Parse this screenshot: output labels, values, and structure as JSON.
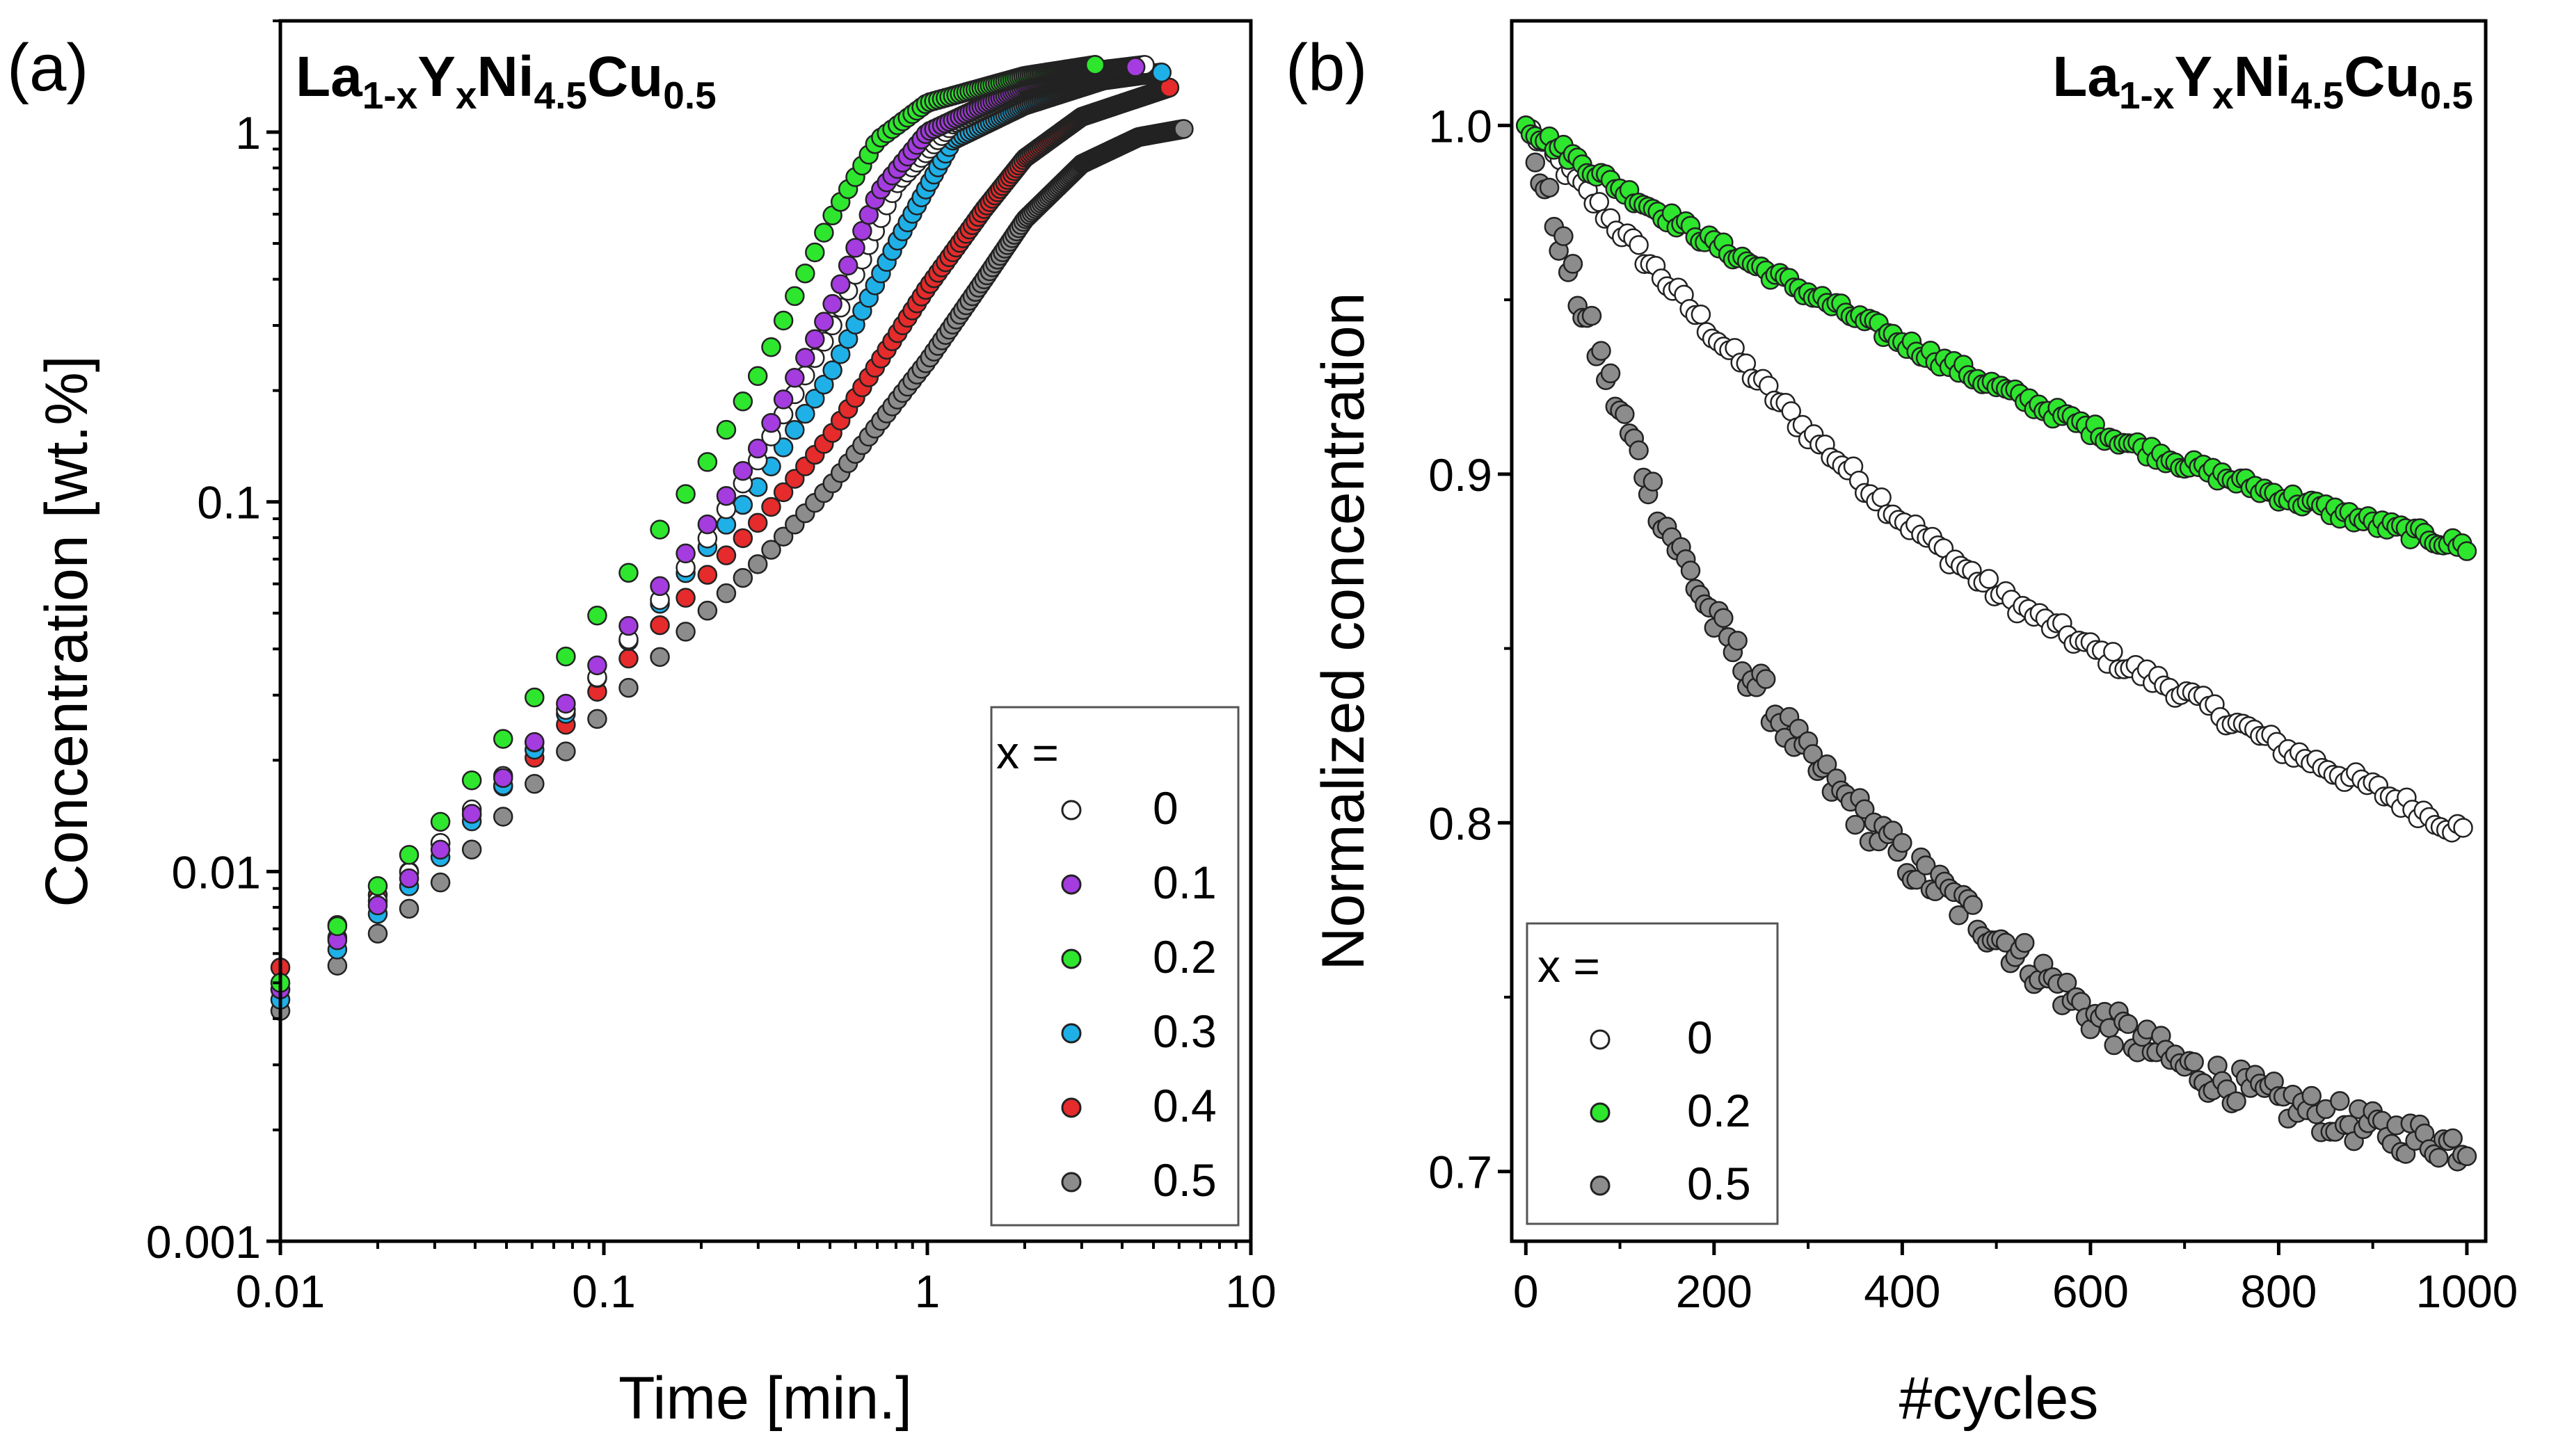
{
  "chart_data": [
    {
      "type": "scatter",
      "panel_label": "(a)",
      "title_parts": {
        "a": "La",
        "b": "1-x",
        "c": "Y",
        "d": "x",
        "e": "Ni",
        "f": "4.5",
        "g": "Cu",
        "h": "0.5"
      },
      "xlabel": "Time [min.]",
      "ylabel": "Concentration [wt.%]",
      "xscale": "log",
      "yscale": "log",
      "xlim": [
        0.01,
        10
      ],
      "ylim": [
        0.001,
        2
      ],
      "xticks": [
        {
          "v": 0.01,
          "label": "0.01"
        },
        {
          "v": 0.1,
          "label": "0.1"
        },
        {
          "v": 1,
          "label": "1"
        },
        {
          "v": 10,
          "label": "10"
        }
      ],
      "yticks": [
        {
          "v": 0.001,
          "label": "0.001"
        },
        {
          "v": 0.01,
          "label": "0.01"
        },
        {
          "v": 0.1,
          "label": "0.1"
        },
        {
          "v": 1,
          "label": "1"
        }
      ],
      "legend": {
        "title": "x =",
        "position": "bottom-right"
      },
      "series": [
        {
          "name": "0",
          "color": "#ffffff",
          "keypoints": [
            [
              0.01,
              0.0048
            ],
            [
              0.03,
              0.0115
            ],
            [
              0.06,
              0.022
            ],
            [
              0.1,
              0.035
            ],
            [
              0.2,
              0.075
            ],
            [
              0.3,
              0.13
            ],
            [
              0.5,
              0.29
            ],
            [
              0.8,
              0.72
            ],
            [
              1.2,
              1.05
            ],
            [
              2.0,
              1.3
            ],
            [
              3.0,
              1.45
            ],
            [
              4.7,
              1.52
            ]
          ]
        },
        {
          "name": "0.1",
          "color": "#a43ce0",
          "keypoints": [
            [
              0.01,
              0.0048
            ],
            [
              0.03,
              0.011
            ],
            [
              0.06,
              0.022
            ],
            [
              0.1,
              0.038
            ],
            [
              0.2,
              0.082
            ],
            [
              0.3,
              0.14
            ],
            [
              0.5,
              0.33
            ],
            [
              0.7,
              0.68
            ],
            [
              1.0,
              1.0
            ],
            [
              2.0,
              1.33
            ],
            [
              3.0,
              1.45
            ],
            [
              4.4,
              1.5
            ]
          ]
        },
        {
          "name": "0.2",
          "color": "#2ee62e",
          "keypoints": [
            [
              0.01,
              0.005
            ],
            [
              0.03,
              0.013
            ],
            [
              0.06,
              0.029
            ],
            [
              0.1,
              0.052
            ],
            [
              0.2,
              0.12
            ],
            [
              0.3,
              0.22
            ],
            [
              0.5,
              0.58
            ],
            [
              0.7,
              0.95
            ],
            [
              1.0,
              1.2
            ],
            [
              2.0,
              1.42
            ],
            [
              3.3,
              1.52
            ]
          ]
        },
        {
          "name": "0.3",
          "color": "#1fb0e8",
          "keypoints": [
            [
              0.01,
              0.0045
            ],
            [
              0.03,
              0.0105
            ],
            [
              0.06,
              0.021
            ],
            [
              0.1,
              0.035
            ],
            [
              0.2,
              0.072
            ],
            [
              0.3,
              0.11
            ],
            [
              0.5,
              0.22
            ],
            [
              0.8,
              0.5
            ],
            [
              1.2,
              0.95
            ],
            [
              2.0,
              1.18
            ],
            [
              3.5,
              1.38
            ],
            [
              5.3,
              1.45
            ]
          ]
        },
        {
          "name": "0.4",
          "color": "#e52b2b",
          "keypoints": [
            [
              0.01,
              0.0055
            ],
            [
              0.025,
              0.01
            ],
            [
              0.06,
              0.02
            ],
            [
              0.1,
              0.032
            ],
            [
              0.2,
              0.061
            ],
            [
              0.3,
              0.088
            ],
            [
              0.5,
              0.15
            ],
            [
              1.0,
              0.38
            ],
            [
              1.5,
              0.62
            ],
            [
              2.0,
              0.85
            ],
            [
              3.0,
              1.1
            ],
            [
              5.6,
              1.32
            ]
          ]
        },
        {
          "name": "0.5",
          "color": "#8c8c8c",
          "keypoints": [
            [
              0.01,
              0.0042
            ],
            [
              0.03,
              0.009
            ],
            [
              0.06,
              0.017
            ],
            [
              0.1,
              0.027
            ],
            [
              0.2,
              0.049
            ],
            [
              0.3,
              0.068
            ],
            [
              0.5,
              0.11
            ],
            [
              1.0,
              0.24
            ],
            [
              1.5,
              0.4
            ],
            [
              2.0,
              0.58
            ],
            [
              3.0,
              0.82
            ],
            [
              4.5,
              0.97
            ],
            [
              6.2,
              1.02
            ]
          ]
        }
      ]
    },
    {
      "type": "scatter",
      "panel_label": "(b)",
      "title_parts": {
        "a": "La",
        "b": "1-x",
        "c": "Y",
        "d": "x",
        "e": "Ni",
        "f": "4.5",
        "g": "Cu",
        "h": "0.5"
      },
      "xlabel": "#cycles",
      "ylabel": "Normalized concentration",
      "xlim": [
        -15,
        1020
      ],
      "ylim": [
        0.68,
        1.03
      ],
      "xticks": [
        {
          "v": 0,
          "label": "0"
        },
        {
          "v": 200,
          "label": "200"
        },
        {
          "v": 400,
          "label": "400"
        },
        {
          "v": 600,
          "label": "600"
        },
        {
          "v": 800,
          "label": "800"
        },
        {
          "v": 1000,
          "label": "1000"
        }
      ],
      "yticks": [
        {
          "v": 0.7,
          "label": "0.7"
        },
        {
          "v": 0.8,
          "label": "0.8"
        },
        {
          "v": 0.9,
          "label": "0.9"
        },
        {
          "v": 1.0,
          "label": "1.0"
        }
      ],
      "legend": {
        "title": "x =",
        "position": "bottom-left"
      },
      "series": [
        {
          "name": "0",
          "color": "#ffffff",
          "keypoints": [
            [
              0,
              1.0
            ],
            [
              100,
              0.97
            ],
            [
              200,
              0.94
            ],
            [
              300,
              0.912
            ],
            [
              400,
              0.887
            ],
            [
              500,
              0.866
            ],
            [
              600,
              0.85
            ],
            [
              700,
              0.837
            ],
            [
              800,
              0.822
            ],
            [
              900,
              0.81
            ],
            [
              1000,
              0.797
            ]
          ]
        },
        {
          "name": "0.2",
          "color": "#2ee62e",
          "keypoints": [
            [
              0,
              1.0
            ],
            [
              100,
              0.982
            ],
            [
              200,
              0.966
            ],
            [
              300,
              0.952
            ],
            [
              400,
              0.938
            ],
            [
              500,
              0.925
            ],
            [
              600,
              0.913
            ],
            [
              700,
              0.903
            ],
            [
              800,
              0.894
            ],
            [
              900,
              0.886
            ],
            [
              1000,
              0.879
            ]
          ]
        },
        {
          "name": "0.5",
          "color": "#8c8c8c",
          "keypoints": [
            [
              0,
              1.0
            ],
            [
              50,
              0.955
            ],
            [
              100,
              0.918
            ],
            [
              150,
              0.885
            ],
            [
              200,
              0.858
            ],
            [
              300,
              0.818
            ],
            [
              400,
              0.79
            ],
            [
              500,
              0.768
            ],
            [
              600,
              0.745
            ],
            [
              700,
              0.73
            ],
            [
              800,
              0.72
            ],
            [
              900,
              0.712
            ],
            [
              1000,
              0.707
            ]
          ]
        }
      ]
    }
  ]
}
